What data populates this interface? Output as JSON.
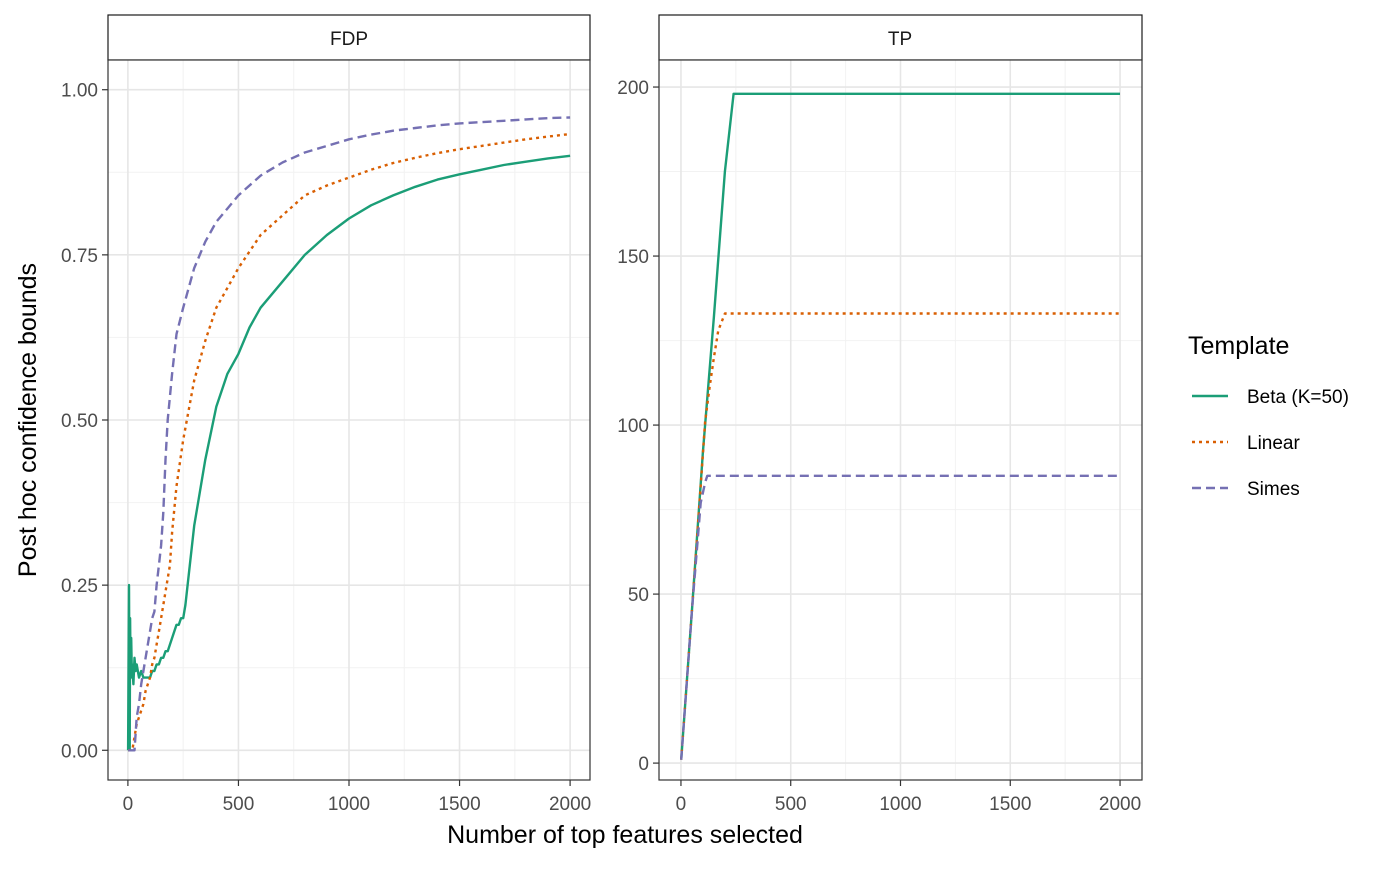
{
  "figure": {
    "xlabel": "Number of top features selected",
    "ylabel": "Post hoc confidence bounds"
  },
  "legend": {
    "title": "Template",
    "placement": "right",
    "items": [
      {
        "label": "Beta (K=50)",
        "color": "#1b9e77",
        "dash": "solid"
      },
      {
        "label": "Linear",
        "color": "#d95f02",
        "dash": "dotted"
      },
      {
        "label": "Simes",
        "color": "#7570b3",
        "dash": "dashed"
      }
    ]
  },
  "chart_data": [
    {
      "type": "line",
      "facet": "FDP",
      "xlim": [
        -90,
        2090
      ],
      "ylim": [
        -0.045,
        1.045
      ],
      "xticks": [
        0,
        500,
        1000,
        1500,
        2000
      ],
      "xtick_labels": [
        "0",
        "500",
        "1000",
        "1500",
        "2000"
      ],
      "yticks": [
        0,
        0.25,
        0.5,
        0.75,
        1.0
      ],
      "ytick_labels": [
        "0.00",
        "0.25",
        "0.50",
        "0.75",
        "1.00"
      ],
      "grid": true,
      "series": [
        {
          "name": "Beta (K=50)",
          "x": [
            1,
            5,
            8,
            10,
            12,
            15,
            18,
            20,
            25,
            30,
            35,
            40,
            50,
            60,
            70,
            80,
            90,
            100,
            110,
            120,
            130,
            140,
            150,
            160,
            170,
            180,
            190,
            200,
            210,
            220,
            230,
            240,
            250,
            260,
            280,
            300,
            350,
            400,
            450,
            500,
            550,
            600,
            700,
            800,
            900,
            1000,
            1100,
            1200,
            1300,
            1400,
            1500,
            1600,
            1700,
            1800,
            1900,
            2000
          ],
          "y": [
            0.0,
            0.25,
            0.0,
            0.2,
            0.11,
            0.17,
            0.11,
            0.13,
            0.1,
            0.14,
            0.12,
            0.13,
            0.11,
            0.12,
            0.11,
            0.11,
            0.11,
            0.11,
            0.12,
            0.12,
            0.13,
            0.13,
            0.14,
            0.14,
            0.15,
            0.15,
            0.16,
            0.17,
            0.18,
            0.19,
            0.19,
            0.2,
            0.2,
            0.22,
            0.28,
            0.34,
            0.44,
            0.52,
            0.57,
            0.6,
            0.64,
            0.67,
            0.71,
            0.75,
            0.78,
            0.805,
            0.825,
            0.84,
            0.853,
            0.864,
            0.872,
            0.879,
            0.886,
            0.891,
            0.896,
            0.9
          ]
        },
        {
          "name": "Linear",
          "x": [
            1,
            20,
            30,
            40,
            50,
            60,
            70,
            80,
            90,
            100,
            110,
            120,
            130,
            140,
            150,
            160,
            170,
            180,
            190,
            200,
            220,
            250,
            300,
            350,
            400,
            450,
            500,
            600,
            700,
            800,
            900,
            1000,
            1100,
            1200,
            1300,
            1400,
            1500,
            1600,
            1700,
            1800,
            1900,
            2000
          ],
          "y": [
            0.0,
            0.0,
            0.02,
            0.04,
            0.05,
            0.06,
            0.07,
            0.09,
            0.1,
            0.11,
            0.13,
            0.14,
            0.16,
            0.18,
            0.2,
            0.22,
            0.24,
            0.26,
            0.28,
            0.33,
            0.4,
            0.47,
            0.56,
            0.62,
            0.67,
            0.7,
            0.73,
            0.78,
            0.81,
            0.84,
            0.855,
            0.867,
            0.879,
            0.889,
            0.897,
            0.904,
            0.91,
            0.915,
            0.92,
            0.925,
            0.929,
            0.933
          ]
        },
        {
          "name": "Simes",
          "x": [
            1,
            30,
            40,
            50,
            60,
            70,
            80,
            90,
            100,
            110,
            120,
            130,
            140,
            150,
            160,
            170,
            180,
            200,
            220,
            250,
            300,
            350,
            400,
            450,
            500,
            600,
            700,
            800,
            900,
            1000,
            1100,
            1200,
            1300,
            1400,
            1500,
            1600,
            1700,
            1800,
            1900,
            2000
          ],
          "y": [
            0.0,
            0.0,
            0.05,
            0.07,
            0.1,
            0.12,
            0.14,
            0.16,
            0.18,
            0.2,
            0.21,
            0.25,
            0.28,
            0.31,
            0.36,
            0.44,
            0.5,
            0.57,
            0.63,
            0.67,
            0.73,
            0.77,
            0.8,
            0.82,
            0.84,
            0.87,
            0.89,
            0.905,
            0.915,
            0.925,
            0.932,
            0.938,
            0.942,
            0.946,
            0.949,
            0.951,
            0.953,
            0.955,
            0.957,
            0.958
          ]
        }
      ]
    },
    {
      "type": "line",
      "facet": "TP",
      "xlim": [
        -100,
        2100
      ],
      "ylim": [
        -5,
        208
      ],
      "xticks": [
        0,
        500,
        1000,
        1500,
        2000
      ],
      "xtick_labels": [
        "0",
        "500",
        "1000",
        "1500",
        "2000"
      ],
      "yticks": [
        0,
        50,
        100,
        150,
        200
      ],
      "ytick_labels": [
        "0",
        "50",
        "100",
        "150",
        "200"
      ],
      "grid": true,
      "series": [
        {
          "name": "Beta (K=50)",
          "x": [
            1,
            50,
            100,
            150,
            200,
            240,
            250,
            2000
          ],
          "y": [
            1,
            45,
            92,
            132,
            175,
            198,
            198,
            198
          ]
        },
        {
          "name": "Linear",
          "x": [
            1,
            50,
            90,
            110,
            130,
            150,
            170,
            200,
            2000
          ],
          "y": [
            1,
            45,
            82,
            101,
            111,
            120,
            128,
            133,
            133
          ]
        },
        {
          "name": "Simes",
          "x": [
            1,
            50,
            90,
            100,
            110,
            120,
            2000
          ],
          "y": [
            1,
            45,
            77,
            80,
            83,
            85,
            85
          ]
        }
      ]
    }
  ]
}
